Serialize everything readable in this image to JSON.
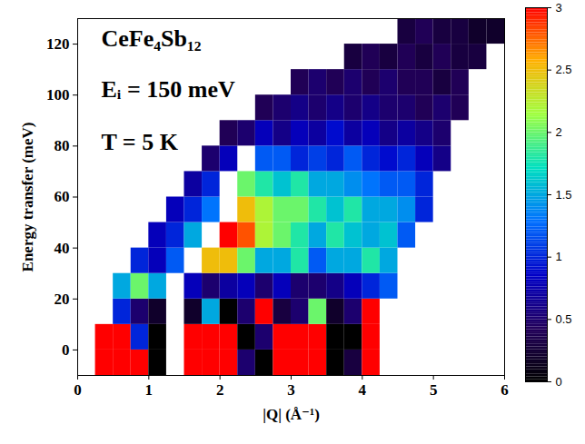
{
  "chart_data": {
    "type": "heatmap",
    "annotations": [
      "CeFe₄Sb₁₂",
      "Eᵢ = 150 meV",
      "T = 5 K"
    ],
    "xlabel": "|Q| (Å⁻¹)",
    "ylabel": "Energy transfer (meV)",
    "xlim": [
      0,
      6
    ],
    "xticks": [
      0,
      1,
      2,
      3,
      4,
      5,
      6
    ],
    "ylim": [
      -10,
      130
    ],
    "yticks": [
      0,
      20,
      40,
      60,
      80,
      100,
      120
    ],
    "x_bins": [
      0,
      0.25,
      0.5,
      0.75,
      1,
      1.25,
      1.5,
      1.75,
      2,
      2.25,
      2.5,
      2.75,
      3,
      3.25,
      3.5,
      3.75,
      4,
      4.25,
      4.5,
      4.75,
      5,
      5.25,
      5.5,
      5.75,
      6
    ],
    "y_bins": [
      -10,
      0,
      10,
      20,
      30,
      40,
      50,
      60,
      70,
      80,
      90,
      100,
      110,
      120,
      130
    ],
    "values": [
      [
        null,
        4,
        4,
        3,
        0,
        null,
        4,
        4,
        4,
        0.5,
        0,
        4,
        4,
        4,
        0,
        0.3,
        4,
        null,
        null,
        null,
        null,
        null,
        null,
        null
      ],
      [
        null,
        4,
        4,
        1,
        0,
        null,
        4,
        4,
        3,
        0,
        0.5,
        4,
        4,
        3,
        0,
        0,
        4,
        null,
        null,
        null,
        null,
        null,
        null,
        null
      ],
      [
        null,
        null,
        1,
        0.5,
        0.2,
        null,
        0.2,
        1.5,
        0,
        0.5,
        3,
        0.3,
        0.5,
        2,
        0.2,
        0.5,
        3,
        null,
        null,
        null,
        null,
        null,
        null,
        null
      ],
      [
        null,
        null,
        1.5,
        2,
        1.5,
        null,
        0.8,
        0.5,
        0.7,
        0.8,
        0.5,
        0.8,
        0.5,
        0.5,
        0.6,
        0.8,
        1,
        1.2,
        null,
        null,
        null,
        null,
        null,
        null
      ],
      [
        null,
        null,
        null,
        1,
        0.8,
        1.2,
        null,
        2.5,
        2.5,
        2,
        1.5,
        1.5,
        1.8,
        1.2,
        1.5,
        1.5,
        1.8,
        1.5,
        null,
        null,
        null,
        null,
        null,
        null
      ],
      [
        null,
        null,
        null,
        null,
        0.8,
        1,
        1.5,
        null,
        3,
        2.8,
        2.2,
        2,
        1.8,
        1.5,
        1.8,
        1.6,
        1.5,
        1.6,
        1.2,
        null,
        null,
        null,
        null,
        null
      ],
      [
        null,
        null,
        null,
        null,
        null,
        0.8,
        1,
        1.3,
        null,
        2.5,
        2.2,
        2,
        2,
        1.8,
        1.6,
        1.8,
        1.5,
        1.5,
        1.4,
        1,
        null,
        null,
        null,
        null
      ],
      [
        null,
        null,
        null,
        null,
        null,
        null,
        0.7,
        1,
        null,
        2,
        1.8,
        1.6,
        1.8,
        1.5,
        1.5,
        1.4,
        1.3,
        1.2,
        1.2,
        1,
        null,
        null,
        null,
        null
      ],
      [
        null,
        null,
        null,
        null,
        null,
        null,
        null,
        0.5,
        0.8,
        null,
        1.2,
        1.2,
        1,
        1.1,
        1,
        1.2,
        1,
        0.9,
        1,
        0.8,
        0.6,
        null,
        null,
        null
      ],
      [
        null,
        null,
        null,
        null,
        null,
        null,
        null,
        null,
        0.4,
        0.5,
        0.8,
        0.6,
        0.8,
        0.7,
        0.9,
        0.7,
        0.8,
        0.6,
        0.7,
        0.6,
        0.5,
        null,
        null,
        null
      ],
      [
        null,
        null,
        null,
        null,
        null,
        null,
        null,
        null,
        null,
        null,
        0.4,
        0.5,
        0.6,
        0.5,
        0.6,
        0.5,
        0.6,
        0.5,
        0.5,
        0.4,
        0.5,
        0.4,
        null,
        null
      ],
      [
        null,
        null,
        null,
        null,
        null,
        null,
        null,
        null,
        null,
        null,
        null,
        null,
        0.4,
        0.5,
        0.4,
        0.5,
        0.4,
        0.5,
        0.4,
        0.4,
        0.3,
        0.4,
        null,
        null
      ],
      [
        null,
        null,
        null,
        null,
        null,
        null,
        null,
        null,
        null,
        null,
        null,
        null,
        null,
        null,
        null,
        0.3,
        0.4,
        0.3,
        0.4,
        0.3,
        0.4,
        0.3,
        0.3,
        null
      ],
      [
        null,
        null,
        null,
        null,
        null,
        null,
        null,
        null,
        null,
        null,
        null,
        null,
        null,
        null,
        null,
        null,
        null,
        null,
        0.3,
        0.4,
        0.3,
        0.3,
        0.2,
        0.2
      ]
    ],
    "colorbar": {
      "lim": [
        0,
        3
      ],
      "ticks": [
        0,
        0.5,
        1,
        1.5,
        2,
        2.5,
        3
      ]
    }
  }
}
